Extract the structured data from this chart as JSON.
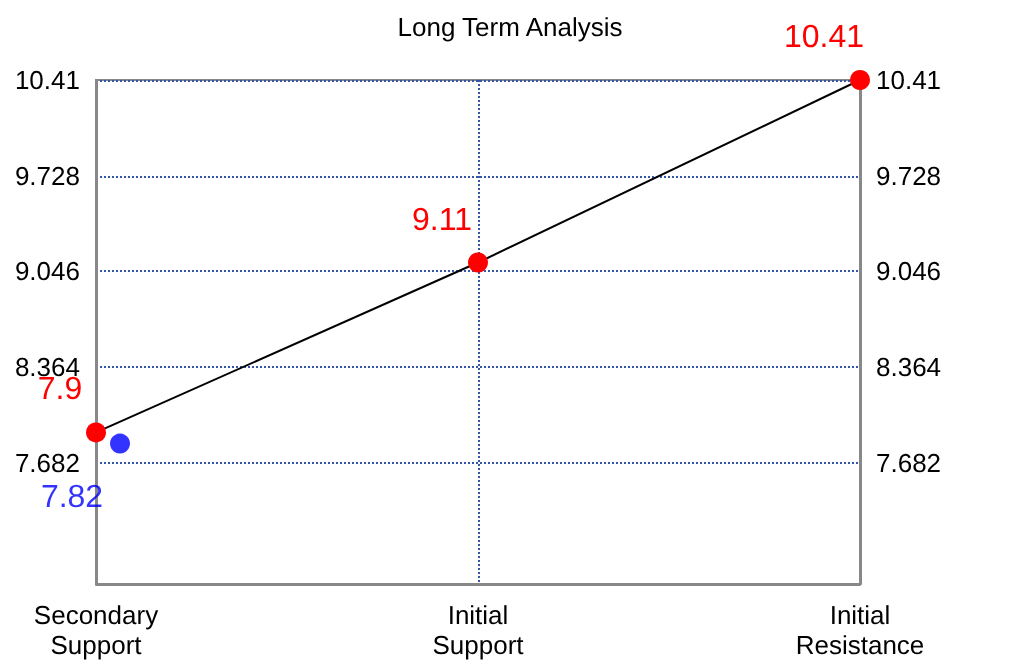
{
  "chart_data": {
    "type": "line",
    "title": "Long Term Analysis",
    "categories": [
      "Secondary Support",
      "Initial Support",
      "Initial Resistance"
    ],
    "ylim": [
      6.82,
      10.41
    ],
    "yticks": [
      7.682,
      8.364,
      9.046,
      9.728,
      10.41
    ],
    "y2lim": [
      6.82,
      10.41
    ],
    "y2ticks": [
      7.682,
      8.364,
      9.046,
      9.728,
      10.41
    ],
    "grid": true,
    "series": [
      {
        "color": "#000000",
        "colors": [
          "#ff0000",
          "#ff0000",
          "#ff0000"
        ],
        "values": [
          7.9,
          9.11,
          10.41
        ],
        "marker": "circle",
        "data_labels": true
      },
      {
        "type": "scatter",
        "color": "#0000ff",
        "x": [
          "Secondary Support"
        ],
        "values": [
          7.82
        ],
        "marker": "circle",
        "data_labels": true
      }
    ]
  }
}
